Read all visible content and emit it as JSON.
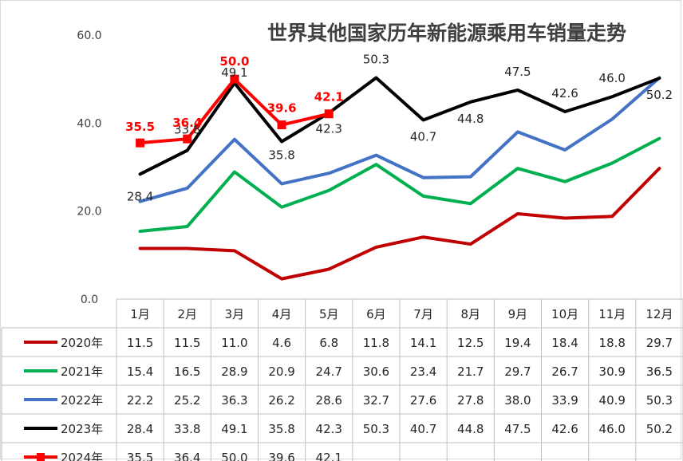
{
  "chart_data": {
    "type": "line",
    "title": "世界其他国家历年新能源乘用车销量走势",
    "categories": [
      "1月",
      "2月",
      "3月",
      "4月",
      "5月",
      "6月",
      "7月",
      "8月",
      "9月",
      "10月",
      "11月",
      "12月"
    ],
    "yticks": [
      "0.0",
      "20.0",
      "40.0",
      "60.0"
    ],
    "ylim": [
      0,
      60
    ],
    "legend": "data-table",
    "grid": false,
    "series": [
      {
        "name": "2020年",
        "color": "#c00000",
        "values": [
          "11.5",
          "11.5",
          "11.0",
          "4.6",
          "6.8",
          "11.8",
          "14.1",
          "12.5",
          "19.4",
          "18.4",
          "18.8",
          "29.7"
        ]
      },
      {
        "name": "2021年",
        "color": "#00b050",
        "values": [
          "15.4",
          "16.5",
          "28.9",
          "20.9",
          "24.7",
          "30.6",
          "23.4",
          "21.7",
          "29.7",
          "26.7",
          "30.9",
          "36.5"
        ]
      },
      {
        "name": "2022年",
        "color": "#4472c4",
        "values": [
          "22.2",
          "25.2",
          "36.3",
          "26.2",
          "28.6",
          "32.7",
          "27.6",
          "27.8",
          "38.0",
          "33.9",
          "40.9",
          "50.3"
        ]
      },
      {
        "name": "2023年",
        "color": "#000000",
        "values": [
          "28.4",
          "33.8",
          "49.1",
          "35.8",
          "42.3",
          "50.3",
          "40.7",
          "44.8",
          "47.5",
          "42.6",
          "46.0",
          "50.2"
        ]
      },
      {
        "name": "2024年",
        "color": "#ff0000",
        "marker": "square",
        "values": [
          "35.5",
          "36.4",
          "50.0",
          "39.6",
          "42.1",
          "",
          "",
          "",
          "",
          "",
          "",
          ""
        ]
      }
    ],
    "data_labels": {
      "2023年": [
        "28.4",
        "33.8",
        "49.1",
        "35.8",
        "42.3",
        "50.3",
        "40.7",
        "44.8",
        "47.5",
        "42.6",
        "46.0",
        "50.2"
      ],
      "2024年": [
        "35.5",
        "36.4",
        "50.0",
        "39.6",
        "42.1"
      ]
    }
  }
}
